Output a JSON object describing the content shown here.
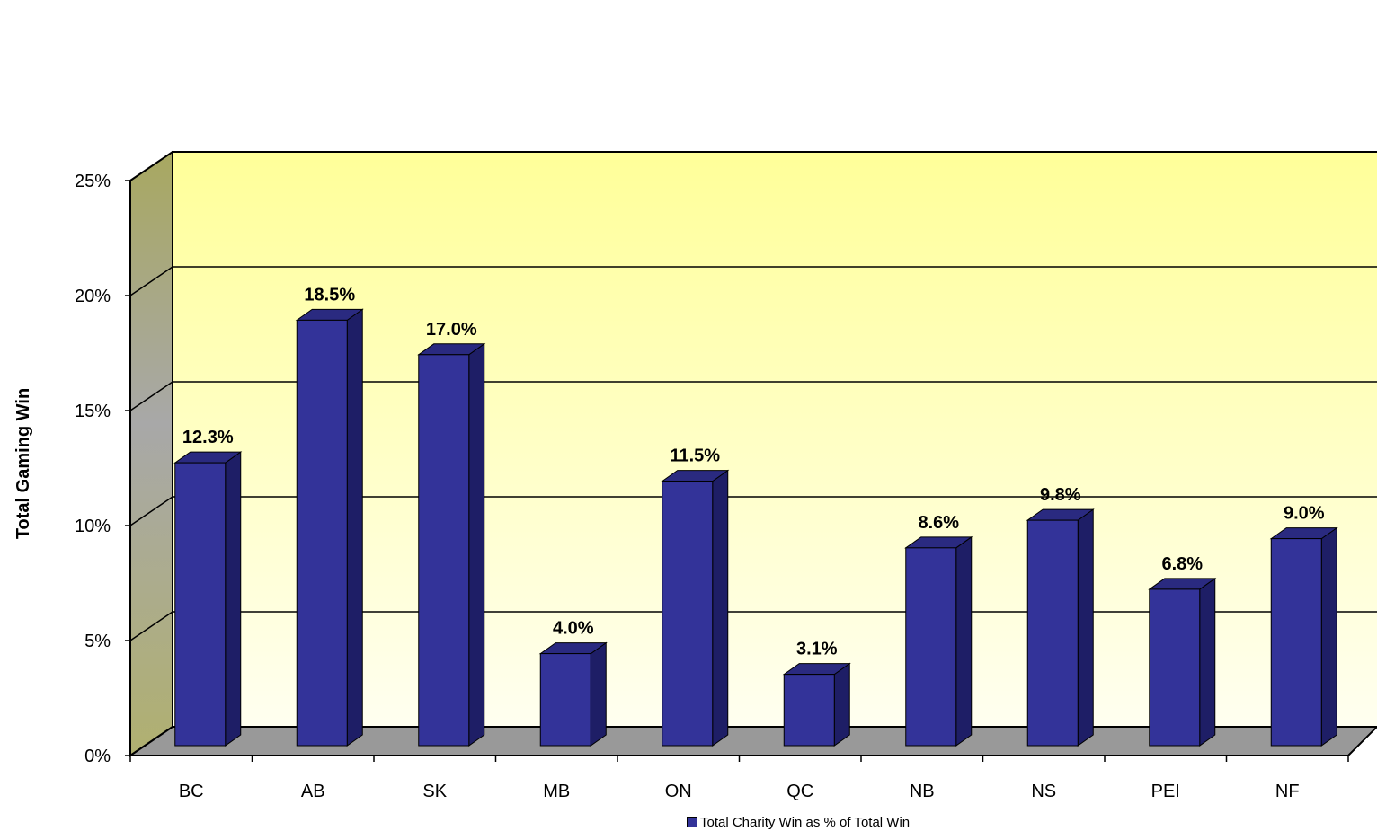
{
  "chart_data": {
    "type": "bar",
    "categories": [
      "BC",
      "AB",
      "SK",
      "MB",
      "ON",
      "QC",
      "NB",
      "NS",
      "PEI",
      "NF"
    ],
    "series": [
      {
        "name": "Total Charity Win as % of Total Win",
        "values": [
          12.3,
          18.5,
          17.0,
          4.0,
          11.5,
          3.1,
          8.6,
          9.8,
          6.8,
          9.0
        ],
        "labels": [
          "12.3%",
          "18.5%",
          "17.0%",
          "4.0%",
          "11.5%",
          "3.1%",
          "8.6%",
          "9.8%",
          "6.8%",
          "9.0%"
        ]
      }
    ],
    "ylabel": "Total Gaming Win",
    "ylim": [
      0,
      25
    ],
    "yticks": [
      0,
      5,
      10,
      15,
      20,
      25
    ],
    "ytick_labels": [
      "0%",
      "5%",
      "10%",
      "15%",
      "20%",
      "25%"
    ],
    "grid": true,
    "legend_position": "bottom",
    "colors": {
      "bar_front": "#333399",
      "bar_side": "#1e1e66",
      "bar_top": "#2a2a80",
      "wall_top": "#ffff99",
      "wall_bottom": "#ffffe0",
      "floor": "#999999",
      "side_wall": "#a8a870"
    }
  }
}
